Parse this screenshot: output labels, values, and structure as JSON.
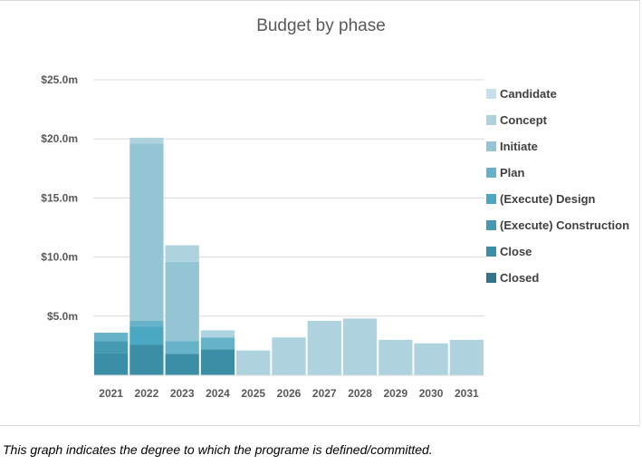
{
  "chart_data": {
    "type": "bar",
    "stacked": true,
    "title": "Budget by phase",
    "xlabel": "",
    "ylabel": "",
    "ylim": [
      0,
      25
    ],
    "y_ticks": [
      {
        "value": 5,
        "label": "$5.0m"
      },
      {
        "value": 10,
        "label": "$10.0m"
      },
      {
        "value": 15,
        "label": "$15.0m"
      },
      {
        "value": 20,
        "label": "$20.0m"
      },
      {
        "value": 25,
        "label": "$25.0m"
      }
    ],
    "grid": true,
    "legend_position": "right",
    "categories": [
      "2021",
      "2022",
      "2023",
      "2024",
      "2025",
      "2026",
      "2027",
      "2028",
      "2029",
      "2030",
      "2031"
    ],
    "series": [
      {
        "name": "Closed",
        "color": "#31758a",
        "values": [
          0,
          0,
          0,
          0,
          0,
          0,
          0,
          0,
          0,
          0,
          0
        ]
      },
      {
        "name": "Close",
        "color": "#3a8ea6",
        "values": [
          1.9,
          2.6,
          1.8,
          2.2,
          0,
          0,
          0,
          0,
          0,
          0,
          0
        ]
      },
      {
        "name": "(Execute) Construction",
        "color": "#4599b1",
        "values": [
          1.0,
          0,
          0,
          0,
          0,
          0,
          0,
          0,
          0,
          0,
          0
        ]
      },
      {
        "name": "(Execute) Design",
        "color": "#4aa8c2",
        "values": [
          0,
          1.5,
          0,
          0,
          0,
          0,
          0,
          0,
          0,
          0,
          0
        ]
      },
      {
        "name": "Plan",
        "color": "#66b2c8",
        "values": [
          0.7,
          0.5,
          1.1,
          1.0,
          0,
          0,
          0,
          0,
          0,
          0,
          0
        ]
      },
      {
        "name": "Initiate",
        "color": "#93c5d5",
        "values": [
          0,
          15.0,
          6.7,
          0,
          0,
          0,
          0,
          0,
          0,
          0,
          0
        ]
      },
      {
        "name": "Concept",
        "color": "#aed3df",
        "values": [
          0,
          0.5,
          1.4,
          0.6,
          2.1,
          3.2,
          4.6,
          4.8,
          3.0,
          2.7,
          3.0
        ]
      },
      {
        "name": "Candidate",
        "color": "#c7e1ea",
        "values": [
          0,
          0,
          0,
          0,
          0,
          0,
          0,
          0,
          0,
          0,
          0
        ]
      }
    ]
  },
  "legend": [
    {
      "label": "Candidate",
      "color": "#c7e1ea"
    },
    {
      "label": "Concept",
      "color": "#aed3df"
    },
    {
      "label": "Initiate",
      "color": "#93c5d5"
    },
    {
      "label": "Plan",
      "color": "#66b2c8"
    },
    {
      "label": "(Execute) Design",
      "color": "#4aa8c2"
    },
    {
      "label": "(Execute) Construction",
      "color": "#4599b1"
    },
    {
      "label": "Close",
      "color": "#3a8ea6"
    },
    {
      "label": "Closed",
      "color": "#31758a"
    }
  ],
  "caption": "This graph indicates the degree to which the programe is defined/committed."
}
